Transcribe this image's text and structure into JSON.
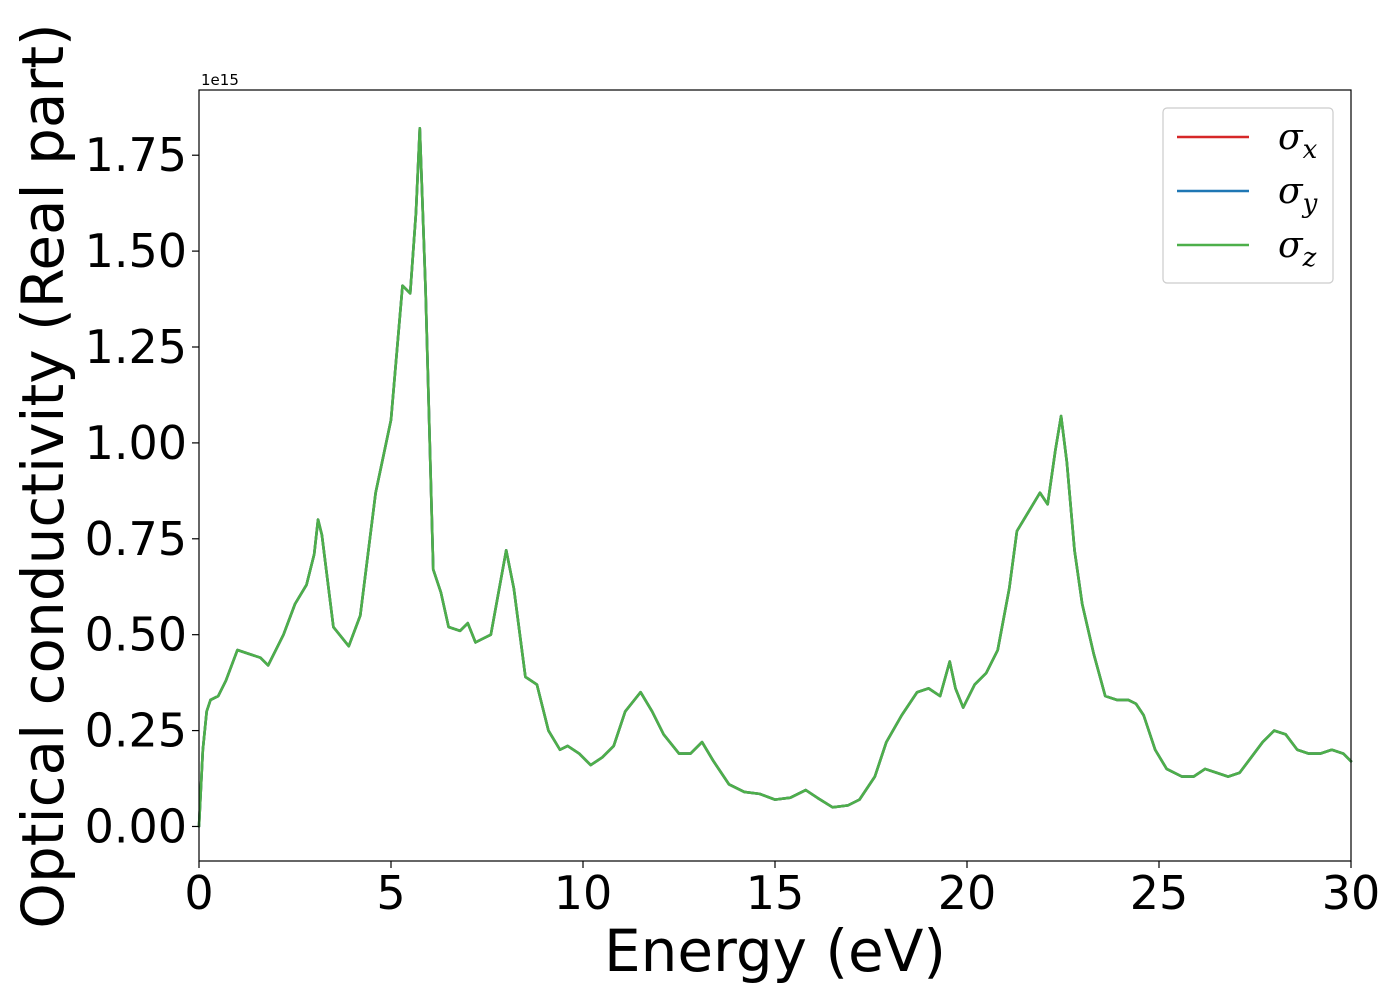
{
  "chart_data": {
    "type": "line",
    "title": "",
    "xlabel": "Energy (eV)",
    "ylabel": "Optical conductivity (Real part)",
    "y_offset_label": "1e15",
    "xlim": [
      0,
      30
    ],
    "ylim": [
      -0.09,
      1.92
    ],
    "x_ticks": [
      0,
      5,
      10,
      15,
      20,
      25,
      30
    ],
    "x_tick_labels": [
      "0",
      "5",
      "10",
      "15",
      "20",
      "25",
      "30"
    ],
    "y_ticks": [
      0.0,
      0.25,
      0.5,
      0.75,
      1.0,
      1.25,
      1.5,
      1.75
    ],
    "y_tick_labels": [
      "0.00",
      "0.25",
      "0.50",
      "0.75",
      "1.00",
      "1.25",
      "1.50",
      "1.75"
    ],
    "grid": false,
    "legend_position": "top-right",
    "x": [
      0.0,
      0.1,
      0.2,
      0.3,
      0.5,
      0.7,
      1.0,
      1.3,
      1.6,
      1.8,
      2.0,
      2.2,
      2.5,
      2.8,
      3.0,
      3.1,
      3.2,
      3.5,
      3.9,
      4.2,
      4.6,
      5.0,
      5.3,
      5.5,
      5.65,
      5.75,
      5.9,
      6.1,
      6.3,
      6.5,
      6.8,
      7.0,
      7.2,
      7.4,
      7.6,
      7.8,
      8.0,
      8.2,
      8.5,
      8.8,
      9.1,
      9.4,
      9.6,
      9.9,
      10.2,
      10.5,
      10.8,
      11.1,
      11.5,
      11.8,
      12.1,
      12.5,
      12.8,
      13.1,
      13.4,
      13.8,
      14.2,
      14.6,
      15.0,
      15.4,
      15.8,
      16.1,
      16.5,
      16.9,
      17.2,
      17.6,
      17.9,
      18.3,
      18.7,
      19.0,
      19.3,
      19.55,
      19.7,
      19.9,
      20.2,
      20.5,
      20.8,
      21.1,
      21.3,
      21.6,
      21.9,
      22.1,
      22.3,
      22.45,
      22.6,
      22.8,
      23.0,
      23.3,
      23.6,
      23.9,
      24.2,
      24.4,
      24.6,
      24.9,
      25.2,
      25.6,
      25.9,
      26.2,
      26.5,
      26.8,
      27.1,
      27.4,
      27.7,
      28.0,
      28.3,
      28.6,
      28.9,
      29.2,
      29.5,
      29.8,
      30.0
    ],
    "series": [
      {
        "name": "σx",
        "color": "#d62728",
        "values": [
          0.0,
          0.2,
          0.3,
          0.33,
          0.34,
          0.38,
          0.46,
          0.45,
          0.44,
          0.42,
          0.46,
          0.5,
          0.58,
          0.63,
          0.71,
          0.8,
          0.76,
          0.52,
          0.47,
          0.55,
          0.87,
          1.06,
          1.41,
          1.39,
          1.6,
          1.82,
          1.4,
          0.67,
          0.61,
          0.52,
          0.51,
          0.53,
          0.48,
          0.49,
          0.5,
          0.61,
          0.72,
          0.62,
          0.39,
          0.37,
          0.25,
          0.2,
          0.21,
          0.19,
          0.16,
          0.18,
          0.21,
          0.3,
          0.35,
          0.3,
          0.24,
          0.19,
          0.19,
          0.22,
          0.17,
          0.11,
          0.09,
          0.085,
          0.07,
          0.075,
          0.095,
          0.075,
          0.05,
          0.055,
          0.07,
          0.13,
          0.22,
          0.29,
          0.35,
          0.36,
          0.34,
          0.43,
          0.36,
          0.31,
          0.37,
          0.4,
          0.46,
          0.62,
          0.77,
          0.82,
          0.87,
          0.84,
          0.98,
          1.07,
          0.95,
          0.72,
          0.58,
          0.45,
          0.34,
          0.33,
          0.33,
          0.32,
          0.29,
          0.2,
          0.15,
          0.13,
          0.13,
          0.15,
          0.14,
          0.13,
          0.14,
          0.18,
          0.22,
          0.25,
          0.24,
          0.2,
          0.19,
          0.19,
          0.2,
          0.19,
          0.17
        ]
      },
      {
        "name": "σy",
        "color": "#1f77b4",
        "values": [
          0.0,
          0.2,
          0.3,
          0.33,
          0.34,
          0.38,
          0.46,
          0.45,
          0.44,
          0.42,
          0.46,
          0.5,
          0.58,
          0.63,
          0.71,
          0.8,
          0.76,
          0.52,
          0.47,
          0.55,
          0.87,
          1.06,
          1.41,
          1.39,
          1.6,
          1.82,
          1.4,
          0.67,
          0.61,
          0.52,
          0.51,
          0.53,
          0.48,
          0.49,
          0.5,
          0.61,
          0.72,
          0.62,
          0.39,
          0.37,
          0.25,
          0.2,
          0.21,
          0.19,
          0.16,
          0.18,
          0.21,
          0.3,
          0.35,
          0.3,
          0.24,
          0.19,
          0.19,
          0.22,
          0.17,
          0.11,
          0.09,
          0.085,
          0.07,
          0.075,
          0.095,
          0.075,
          0.05,
          0.055,
          0.07,
          0.13,
          0.22,
          0.29,
          0.35,
          0.36,
          0.34,
          0.43,
          0.36,
          0.31,
          0.37,
          0.4,
          0.46,
          0.62,
          0.77,
          0.82,
          0.87,
          0.84,
          0.98,
          1.07,
          0.95,
          0.72,
          0.58,
          0.45,
          0.34,
          0.33,
          0.33,
          0.32,
          0.29,
          0.2,
          0.15,
          0.13,
          0.13,
          0.15,
          0.14,
          0.13,
          0.14,
          0.18,
          0.22,
          0.25,
          0.24,
          0.2,
          0.19,
          0.19,
          0.2,
          0.19,
          0.17
        ]
      },
      {
        "name": "σz",
        "color": "#4daf4a",
        "values": [
          0.0,
          0.2,
          0.3,
          0.33,
          0.34,
          0.38,
          0.46,
          0.45,
          0.44,
          0.42,
          0.46,
          0.5,
          0.58,
          0.63,
          0.71,
          0.8,
          0.76,
          0.52,
          0.47,
          0.55,
          0.87,
          1.06,
          1.41,
          1.39,
          1.6,
          1.82,
          1.4,
          0.67,
          0.61,
          0.52,
          0.51,
          0.53,
          0.48,
          0.49,
          0.5,
          0.61,
          0.72,
          0.62,
          0.39,
          0.37,
          0.25,
          0.2,
          0.21,
          0.19,
          0.16,
          0.18,
          0.21,
          0.3,
          0.35,
          0.3,
          0.24,
          0.19,
          0.19,
          0.22,
          0.17,
          0.11,
          0.09,
          0.085,
          0.07,
          0.075,
          0.095,
          0.075,
          0.05,
          0.055,
          0.07,
          0.13,
          0.22,
          0.29,
          0.35,
          0.36,
          0.34,
          0.43,
          0.36,
          0.31,
          0.37,
          0.4,
          0.46,
          0.62,
          0.77,
          0.82,
          0.87,
          0.84,
          0.98,
          1.07,
          0.95,
          0.72,
          0.58,
          0.45,
          0.34,
          0.33,
          0.33,
          0.32,
          0.29,
          0.2,
          0.15,
          0.13,
          0.13,
          0.15,
          0.14,
          0.13,
          0.14,
          0.18,
          0.22,
          0.25,
          0.24,
          0.2,
          0.19,
          0.19,
          0.2,
          0.19,
          0.17
        ]
      }
    ]
  }
}
